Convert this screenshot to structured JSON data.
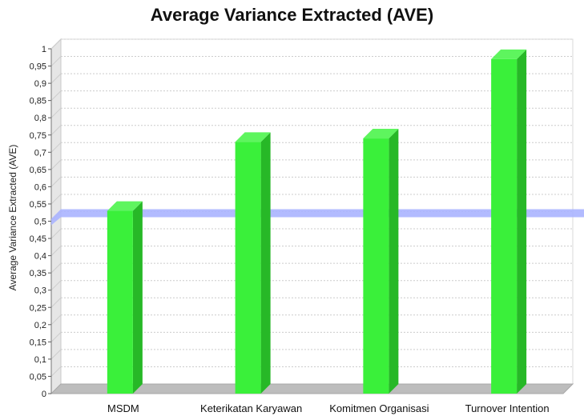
{
  "chart_data": {
    "type": "bar",
    "title": "Average Variance Extracted (AVE)",
    "xlabel": "",
    "ylabel": "Average Variance Extracted (AVE)",
    "categories": [
      "MSDM",
      "Keterikatan Karyawan",
      "Komitmen Organisasi",
      "Turnover Intention"
    ],
    "values": [
      0.53,
      0.73,
      0.74,
      0.97
    ],
    "ylim": [
      0,
      1
    ],
    "yticks": [
      "0",
      "0,05",
      "0,1",
      "0,15",
      "0,2",
      "0,25",
      "0,3",
      "0,35",
      "0,4",
      "0,45",
      "0,5",
      "0,55",
      "0,6",
      "0,65",
      "0,7",
      "0,75",
      "0,8",
      "0,85",
      "0,9",
      "0,95",
      "1"
    ],
    "threshold": 0.5,
    "grid": true,
    "colors": {
      "bar_front": "#3af03a",
      "bar_side": "#27b827",
      "bar_top": "#5ef55e",
      "threshold": "#aab4ff",
      "grid": "#cccccc",
      "floor": "#bdbdbd"
    }
  }
}
